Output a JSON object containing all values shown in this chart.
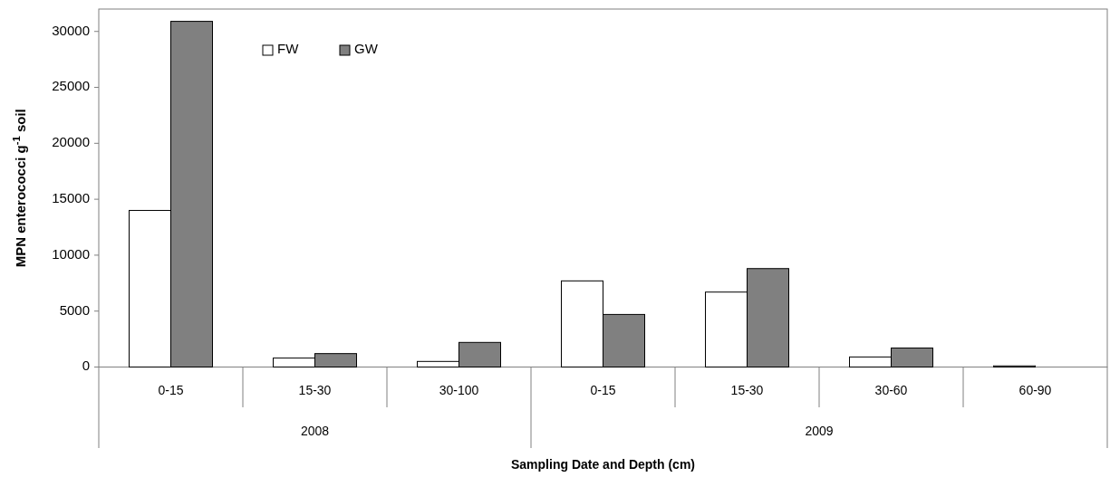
{
  "chart_data": {
    "type": "bar",
    "xlabel": "Sampling Date and Depth (cm)",
    "ylabel": "MPN enterococci g$^{-1}$ soil",
    "categories": [
      "0-15",
      "15-30",
      "30-100",
      "0-15",
      "15-30",
      "30-60",
      "60-90"
    ],
    "series": [
      {
        "name": "FW",
        "color": "#ffffff",
        "values": [
          14000,
          800,
          500,
          7700,
          6700,
          900,
          100
        ]
      },
      {
        "name": "GW",
        "color": "#808080",
        "values": [
          30900,
          1200,
          2200,
          4700,
          8800,
          1700,
          0
        ]
      }
    ],
    "annotations": [
      "2008",
      "2009"
    ],
    "ylim": [
      0,
      32000
    ],
    "yticks": [
      0,
      5000,
      10000,
      15000,
      20000,
      25000,
      30000
    ],
    "grid": false,
    "legend": "top left"
  }
}
